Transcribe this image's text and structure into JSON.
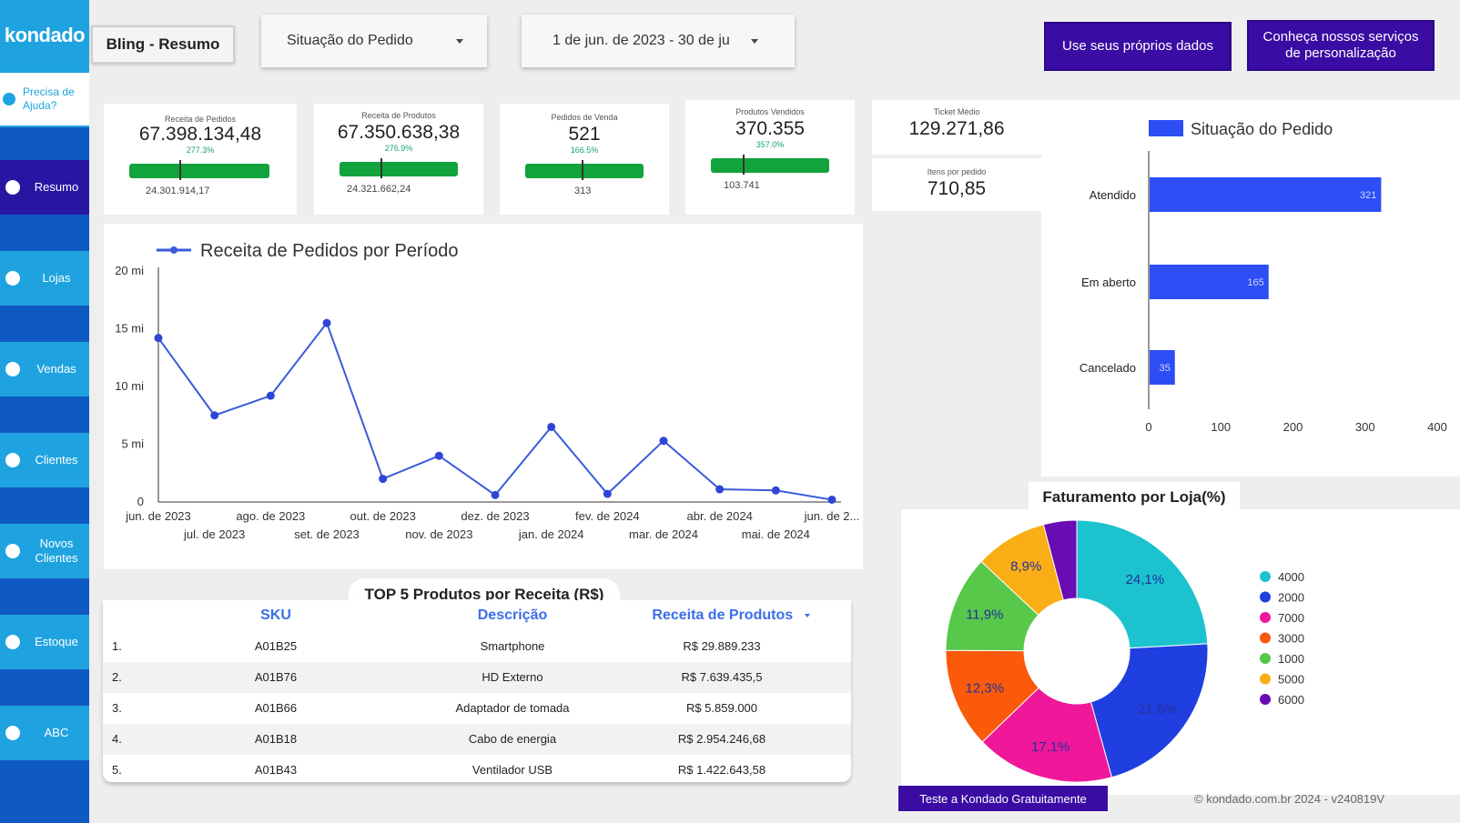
{
  "sidebar": {
    "logo": "kondado",
    "help": "Precisa de Ajuda?",
    "items": [
      {
        "label": "Resumo",
        "active": true
      },
      {
        "label": "Lojas"
      },
      {
        "label": "Vendas"
      },
      {
        "label": "Clientes"
      },
      {
        "label": "Novos Clientes"
      },
      {
        "label": "Estoque"
      },
      {
        "label": "ABC"
      }
    ]
  },
  "header": {
    "title": "Bling - Resumo",
    "status_filter": "Situação do Pedido",
    "date_range": "1 de jun. de 2023 - 30 de ju",
    "cta_own_data": "Use seus próprios dados",
    "cta_services": "Conheça nossos serviços de personalização"
  },
  "kpis": [
    {
      "label": "Receita de Pedidos",
      "value": "67.398.134,48",
      "pct": "277.3%",
      "ref": "24.301.914,17"
    },
    {
      "label": "Receita de Produtos",
      "value": "67.350.638,38",
      "pct": "276.9%",
      "ref": "24.321.662,24"
    },
    {
      "label": "Pedidos de Venda",
      "value": "521",
      "pct": "166.5%",
      "ref": "313"
    },
    {
      "label": "Produtos Vendidos",
      "value": "370.355",
      "pct": "357.0%",
      "ref": "103.741"
    }
  ],
  "ticket": {
    "label": "Ticket Médio",
    "value": "129.271,86"
  },
  "items_per_order": {
    "label": "Itens por pedido",
    "value": "710,85"
  },
  "colors": {
    "sidebar": "#1fa3e0",
    "sidebar_dark": "#0f59c2",
    "active": "#2816a3",
    "accent": "#3a0ca3",
    "bar": "#2d4ef5",
    "kpi_bar": "#12a33c",
    "line": "#3b5bdb"
  },
  "chart_data": [
    {
      "type": "line",
      "title": "Receita de Pedidos por Período",
      "series": [
        {
          "name": "Receita de Pedidos por Período",
          "values": [
            14.2,
            7.5,
            9.2,
            15.5,
            2.0,
            4.0,
            0.6,
            6.5,
            0.7,
            5.3,
            1.1,
            1.0,
            0.2
          ]
        }
      ],
      "x": [
        "jun. de 2023",
        "jul. de 2023",
        "ago. de 2023",
        "set. de 2023",
        "out. de 2023",
        "nov. de 2023",
        "dez. de 2023",
        "jan. de 2024",
        "fev. de 2024",
        "mar. de 2024",
        "abr. de 2024",
        "mai. de 2024",
        "jun. de 2..."
      ],
      "y_ticks": [
        "0",
        "5 mi",
        "10 mi",
        "15 mi",
        "20 mi"
      ],
      "ylim": [
        0,
        20
      ],
      "grid": false,
      "legend": "top-left"
    },
    {
      "type": "bar",
      "orientation": "horizontal",
      "legend_label": "Situação do Pedido",
      "categories": [
        "Atendido",
        "Em aberto",
        "Cancelado"
      ],
      "values": [
        321,
        165,
        35
      ],
      "x_ticks": [
        "0",
        "100",
        "200",
        "300",
        "400"
      ],
      "xlim": [
        0,
        400
      ],
      "legend": "top"
    },
    {
      "type": "pie",
      "title": "Faturamento por Loja(%)",
      "slices": [
        {
          "label": "4000",
          "value": 24.1,
          "display": "24,1%",
          "color": "#1cc3cf"
        },
        {
          "label": "2000",
          "value": 21.6,
          "display": "21,6%",
          "color": "#1f3fe0"
        },
        {
          "label": "7000",
          "value": 17.1,
          "display": "17,1%",
          "color": "#f0189a"
        },
        {
          "label": "3000",
          "value": 12.3,
          "display": "12,3%",
          "color": "#fa5a0a"
        },
        {
          "label": "1000",
          "value": 11.9,
          "display": "11,9%",
          "color": "#57c84a"
        },
        {
          "label": "5000",
          "value": 8.9,
          "display": "8,9%",
          "color": "#f9ae16"
        },
        {
          "label": "6000",
          "value": 4.1,
          "display": "",
          "color": "#6a0cb3"
        }
      ],
      "legend": "right"
    }
  ],
  "top_products": {
    "title": "TOP 5 Produtos por Receita (R$)",
    "columns": [
      "SKU",
      "Descrição",
      "Receita de Produtos"
    ],
    "rows": [
      {
        "n": "1.",
        "sku": "A01B25",
        "desc": "Smartphone",
        "rev": "R$ 29.889.233"
      },
      {
        "n": "2.",
        "sku": "A01B76",
        "desc": "HD Externo",
        "rev": "R$ 7.639.435,5"
      },
      {
        "n": "3.",
        "sku": "A01B66",
        "desc": "Adaptador de tomada",
        "rev": "R$ 5.859.000"
      },
      {
        "n": "4.",
        "sku": "A01B18",
        "desc": "Cabo de energia",
        "rev": "R$ 2.954.246,68"
      },
      {
        "n": "5.",
        "sku": "A01B43",
        "desc": "Ventilador USB",
        "rev": "R$ 1.422.643,58"
      }
    ]
  },
  "footer": {
    "cta": "Teste a Kondado Gratuitamente",
    "copyright": "© kondado.com.br 2024 - v240819V"
  }
}
